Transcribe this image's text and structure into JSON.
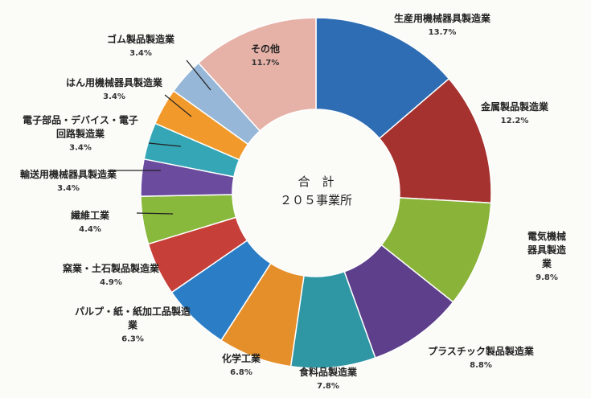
{
  "chart_data": {
    "type": "donut",
    "center_text": [
      "合　計",
      "２０５事業所"
    ],
    "categories": [
      "生産用機械器具製造業",
      "金属製品製造業",
      "電気機械器具製造業",
      "プラスチック製品製造業",
      "食料品製造業",
      "化学工業",
      "パルプ・紙・紙加工品製造\n業",
      "窯業・土石製品製造業",
      "繊維工業",
      "輸送用機械器具製造業",
      "電子部品・デバイス・電子\n回路製造業",
      "はん用機械器具製造業",
      "ゴム製品製造業",
      "その他"
    ],
    "values": [
      13.7,
      12.2,
      9.8,
      8.8,
      7.8,
      6.8,
      6.3,
      4.9,
      4.4,
      3.4,
      3.4,
      3.4,
      3.4,
      11.7
    ],
    "value_labels": [
      "13.7%",
      "12.2%",
      "9.8%",
      "8.8%",
      "7.8%",
      "6.8%",
      "6.3%",
      "4.9%",
      "4.4%",
      "3.4%",
      "3.4%",
      "3.4%",
      "3.4%",
      "11.7%"
    ],
    "colors": [
      "#2e6db3",
      "#a5322f",
      "#8ab33a",
      "#5d3f8b",
      "#2f96a3",
      "#e58f2b",
      "#2b7ec6",
      "#c63f38",
      "#88b83c",
      "#6a4b9e",
      "#34a6b6",
      "#f19a2b",
      "#96b7d7",
      "#e6b2a8"
    ]
  }
}
